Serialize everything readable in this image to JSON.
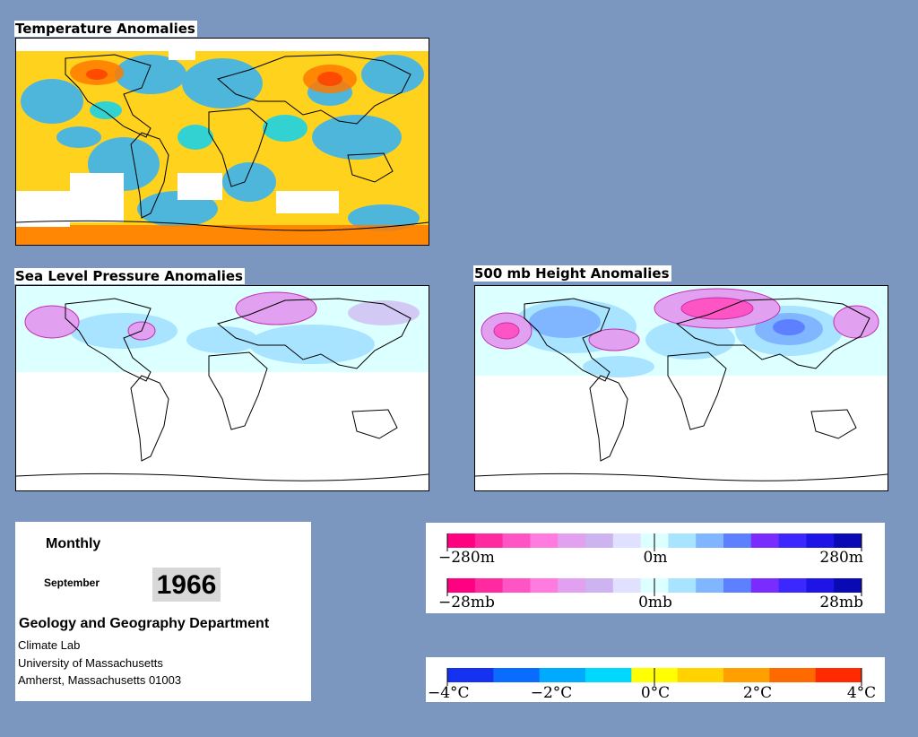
{
  "panels": {
    "temperature": {
      "title": "Temperature Anomalies"
    },
    "slp": {
      "title": "Sea Level Pressure Anomalies"
    },
    "height": {
      "title": "500 mb Height Anomalies"
    }
  },
  "info": {
    "period": "Monthly",
    "month": "September",
    "year": "1966",
    "department": "Geology and Geography Department",
    "lab": "Climate Lab",
    "university": "University of Massachusetts",
    "address": "Amherst, Massachusetts 01003"
  },
  "legends": {
    "height": {
      "left": "−280m",
      "center": "0m",
      "right": "280m"
    },
    "pressure": {
      "left": "−28mb",
      "center": "0mb",
      "right": "28mb"
    },
    "temperature": {
      "labels": [
        "−4°C",
        "−2°C",
        "0°C",
        "2°C",
        "4°C"
      ]
    }
  },
  "colors": {
    "anomaly_scale": [
      "#ff0080",
      "#ff2aa0",
      "#ff55c4",
      "#ff7be0",
      "#e2a0f0",
      "#cdb4f0",
      "#e0e0ff",
      "#dcffff",
      "#a8e4ff",
      "#7fb6ff",
      "#5c80ff",
      "#7a2cff",
      "#3c28ff",
      "#1e14e6",
      "#0a0ab4"
    ],
    "temperature_scale": [
      "#1432f0",
      "#0a6cff",
      "#00aaff",
      "#00d8ff",
      "#ffff00",
      "#ffd200",
      "#ffa000",
      "#ff6a00",
      "#ff2a00"
    ]
  }
}
